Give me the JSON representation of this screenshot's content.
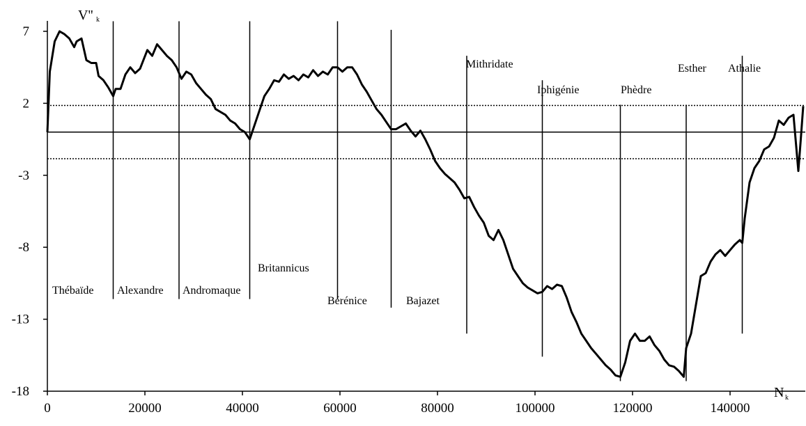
{
  "chart_data": {
    "type": "line",
    "ylabel": "V''",
    "ylabel_sub": "k",
    "xlabel": "N",
    "xlabel_sub": "k",
    "xlim": [
      0,
      155000
    ],
    "ylim": [
      -18,
      7
    ],
    "xticks": [
      0,
      20000,
      40000,
      60000,
      80000,
      100000,
      120000,
      140000
    ],
    "yticks": [
      7,
      2,
      -3,
      -8,
      -13,
      -18
    ],
    "color": "#000000",
    "reference_lines": [
      1.85,
      -1.85
    ],
    "boundaries": [
      {
        "x": 13500,
        "top": 7.7,
        "bottom": -11.6
      },
      {
        "x": 27000,
        "top": 7.7,
        "bottom": -11.6
      },
      {
        "x": 41500,
        "top": 7.7,
        "bottom": -11.6
      },
      {
        "x": 59500,
        "top": 7.7,
        "bottom": -11.6
      },
      {
        "x": 70500,
        "top": 7.1,
        "bottom": -12.2
      },
      {
        "x": 86000,
        "top": 5.3,
        "bottom": -14.0
      },
      {
        "x": 101500,
        "top": 3.6,
        "bottom": -15.6
      },
      {
        "x": 117500,
        "top": 1.9,
        "bottom": -17.3
      },
      {
        "x": 131000,
        "top": 1.9,
        "bottom": -17.3
      },
      {
        "x": 142500,
        "top": 5.3,
        "bottom": -14.0
      }
    ],
    "annotations": [
      "Thébaïde",
      "Alexandre",
      "Andromaque",
      "Britannicus",
      "Bérénice",
      "Bajazet",
      "Mithridate",
      "Iphigénie",
      "Phèdre",
      "Esther",
      "Athalie"
    ],
    "x": [
      0,
      500,
      1500,
      2500,
      3500,
      4500,
      5500,
      6000,
      7000,
      8000,
      9000,
      10000,
      10500,
      11500,
      12500,
      13500,
      14000,
      15000,
      16000,
      17000,
      18000,
      19000,
      20500,
      21500,
      22500,
      23500,
      24500,
      25500,
      26500,
      27500,
      28500,
      29500,
      30500,
      31500,
      32500,
      33500,
      34500,
      35500,
      36500,
      37500,
      38500,
      39500,
      40500,
      41500,
      42500,
      43500,
      44500,
      45500,
      46500,
      47500,
      48500,
      49500,
      50500,
      51500,
      52500,
      53500,
      54500,
      55500,
      56500,
      57500,
      58500,
      59500,
      60500,
      61500,
      62500,
      63500,
      64500,
      65500,
      66500,
      67500,
      68500,
      69500,
      70500,
      71500,
      72500,
      73500,
      74500,
      75500,
      76500,
      77500,
      78500,
      79500,
      80500,
      81500,
      82500,
      83500,
      84500,
      85500,
      86500,
      87500,
      88500,
      89500,
      90500,
      91500,
      92500,
      93500,
      94500,
      95500,
      96500,
      97500,
      98500,
      99500,
      100500,
      101500,
      102500,
      103500,
      104500,
      105500,
      106500,
      107500,
      108500,
      109500,
      110500,
      111500,
      112500,
      113500,
      114500,
      115500,
      116500,
      117500,
      118500,
      119500,
      120500,
      121500,
      122500,
      123500,
      124500,
      125500,
      126500,
      127500,
      128500,
      129500,
      130500,
      131000,
      132000,
      133000,
      134000,
      135000,
      136000,
      137000,
      138000,
      139000,
      140000,
      141000,
      142000,
      142500,
      143000,
      144000,
      145000,
      146000,
      147000,
      148000,
      149000,
      150000,
      151000,
      152000,
      153000,
      154000,
      154500,
      155000
    ],
    "values": [
      0,
      4.2,
      6.3,
      7.0,
      6.8,
      6.5,
      5.9,
      6.3,
      6.5,
      5.0,
      4.8,
      4.8,
      3.9,
      3.6,
      3.1,
      2.5,
      3.0,
      3.0,
      4.0,
      4.5,
      4.1,
      4.4,
      5.7,
      5.3,
      6.1,
      5.7,
      5.3,
      5.0,
      4.5,
      3.7,
      4.2,
      4.0,
      3.4,
      3.0,
      2.6,
      2.3,
      1.6,
      1.4,
      1.2,
      0.8,
      0.6,
      0.2,
      0,
      -0.5,
      0.5,
      1.5,
      2.5,
      3.0,
      3.6,
      3.5,
      4.0,
      3.7,
      3.9,
      3.6,
      4.0,
      3.8,
      4.3,
      3.9,
      4.2,
      4.0,
      4.5,
      4.5,
      4.2,
      4.5,
      4.5,
      4.0,
      3.3,
      2.8,
      2.2,
      1.6,
      1.2,
      0.7,
      0.2,
      0.2,
      0.4,
      0.6,
      0.1,
      -0.3,
      0.1,
      -0.5,
      -1.2,
      -2.0,
      -2.5,
      -2.9,
      -3.2,
      -3.5,
      -4.0,
      -4.6,
      -4.5,
      -5.2,
      -5.8,
      -6.3,
      -7.2,
      -7.5,
      -6.8,
      -7.5,
      -8.5,
      -9.5,
      -10.0,
      -10.5,
      -10.8,
      -11.0,
      -11.2,
      -11.1,
      -10.7,
      -10.9,
      -10.6,
      -10.7,
      -11.5,
      -12.5,
      -13.2,
      -14.0,
      -14.5,
      -15.0,
      -15.4,
      -15.8,
      -16.2,
      -16.5,
      -16.9,
      -17.0,
      -16.0,
      -14.5,
      -14.0,
      -14.5,
      -14.5,
      -14.2,
      -14.8,
      -15.2,
      -15.8,
      -16.2,
      -16.3,
      -16.6,
      -17.0,
      -15.0,
      -14.0,
      -12.0,
      -10.0,
      -9.8,
      -9.0,
      -8.5,
      -8.2,
      -8.6,
      -8.2,
      -7.8,
      -7.5,
      -7.7,
      -6.0,
      -3.5,
      -2.5,
      -2.0,
      -1.2,
      -1.0,
      -0.4,
      0.8,
      0.5,
      1.0,
      1.2,
      -2.7,
      -0.5,
      1.8
    ]
  }
}
